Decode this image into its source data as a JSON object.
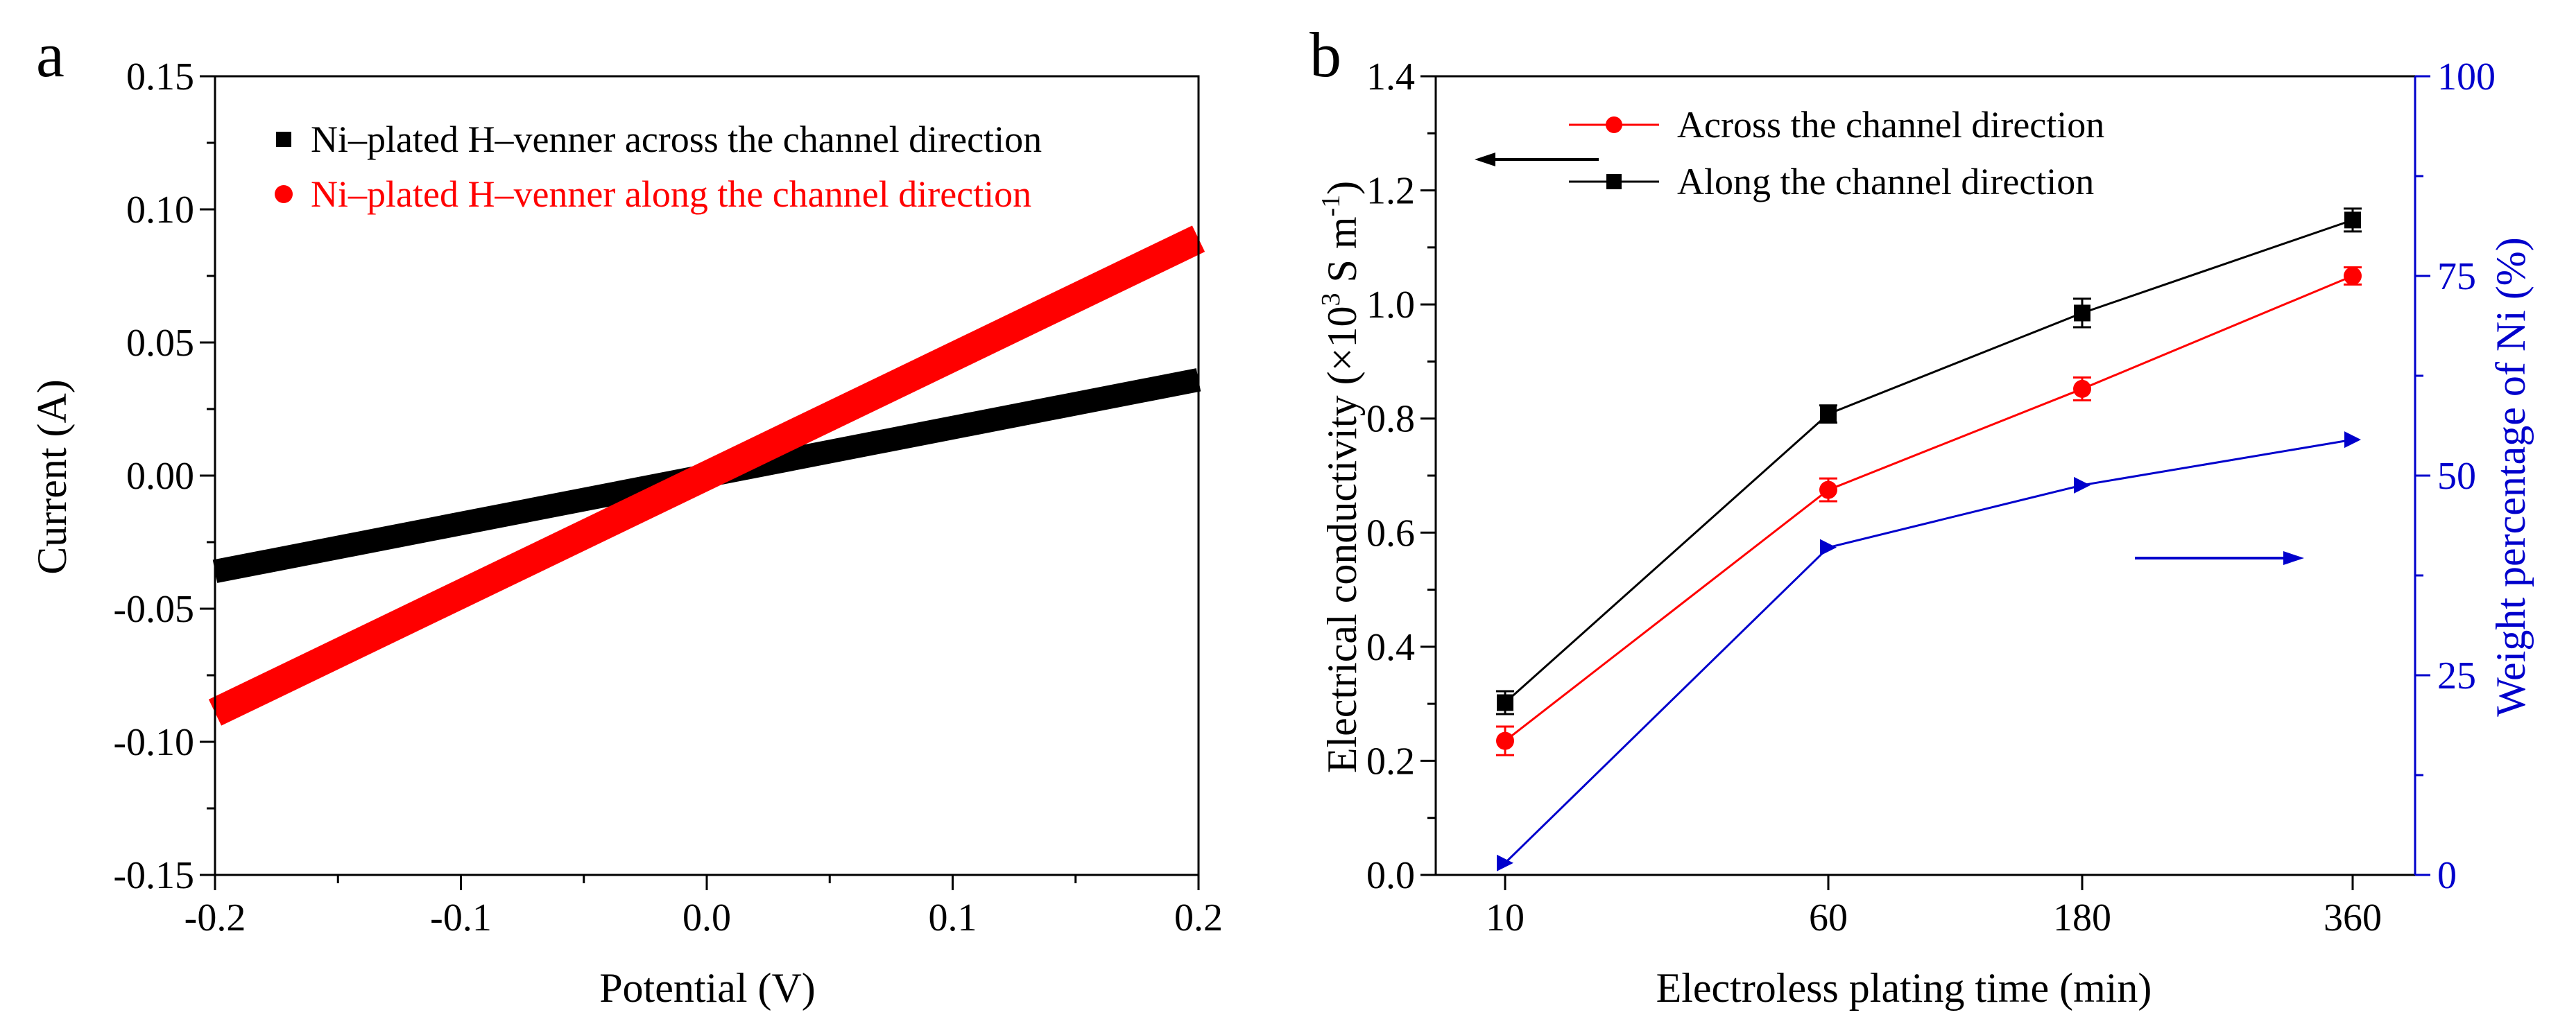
{
  "chart_data": [
    {
      "panel_label": "a",
      "type": "line",
      "xlabel": "Potential (V)",
      "ylabel": "Current (A)",
      "xlim": [
        -0.2,
        0.2
      ],
      "ylim": [
        -0.15,
        0.15
      ],
      "xticks": [
        -0.2,
        -0.1,
        0.0,
        0.1,
        0.2
      ],
      "xtick_labels": [
        "-0.2",
        "-0.1",
        "0.0",
        "0.1",
        "0.2"
      ],
      "yticks": [
        -0.15,
        -0.1,
        -0.05,
        0.0,
        0.05,
        0.1,
        0.15
      ],
      "ytick_labels": [
        "-0.15",
        "-0.10",
        "-0.05",
        "0.00",
        "0.05",
        "0.10",
        "0.15"
      ],
      "legend_position": "top-left",
      "series": [
        {
          "name": "Ni–plated H–venner across the channel direction",
          "color": "#000000",
          "marker": "square",
          "x": [
            -0.2,
            0.2
          ],
          "y": [
            -0.036,
            0.036
          ]
        },
        {
          "name": "Ni–plated H–venner along the channel direction",
          "color": "#ff0000",
          "marker": "circle",
          "x": [
            -0.2,
            0.2
          ],
          "y": [
            -0.089,
            0.089
          ]
        }
      ]
    },
    {
      "panel_label": "b",
      "type": "line",
      "xlabel": "Electroless plating time (min)",
      "ylabel_main": "Electrical conductivity (×10",
      "ylabel_sup1": "3",
      "ylabel_mid": " S m",
      "ylabel_sup2": "-1",
      "ylabel_end": ")",
      "y2label": "Weight percentage of Ni  (%)",
      "categories": [
        "10",
        "60",
        "180",
        "360"
      ],
      "ylim": [
        0.0,
        1.4
      ],
      "yticks": [
        0.0,
        0.2,
        0.4,
        0.6,
        0.8,
        1.0,
        1.2,
        1.4
      ],
      "ytick_labels": [
        "0.0",
        "0.2",
        "0.4",
        "0.6",
        "0.8",
        "1.0",
        "1.2",
        "1.4"
      ],
      "y2lim": [
        0,
        100
      ],
      "y2ticks": [
        0,
        25,
        50,
        75,
        100
      ],
      "y2tick_labels": [
        "0",
        "25",
        "50",
        "75",
        "100"
      ],
      "legend_position": "top-center",
      "accent_y2": "#0000cc",
      "series": [
        {
          "name": "Across the channel direction",
          "color": "#ff0000",
          "marker": "circle",
          "axis": "left",
          "values": [
            0.235,
            0.675,
            0.852,
            1.05
          ],
          "errors": [
            0.025,
            0.02,
            0.02,
            0.015
          ]
        },
        {
          "name": "Along the channel direction",
          "color": "#000000",
          "marker": "square",
          "axis": "left",
          "values": [
            0.302,
            0.808,
            0.985,
            1.148
          ],
          "errors": [
            0.02,
            0.015,
            0.025,
            0.02
          ]
        },
        {
          "name": "Weight percentage of Ni",
          "color": "#0000cc",
          "marker": "triangle-right",
          "axis": "right",
          "values": [
            1.5,
            41,
            48.8,
            54.5
          ],
          "errors": [
            0,
            0,
            0,
            0
          ]
        }
      ],
      "annotations": [
        {
          "type": "arrow",
          "direction": "left",
          "points_to": "left-axis",
          "color": "#000000"
        },
        {
          "type": "arrow",
          "direction": "right",
          "points_to": "right-axis",
          "color": "#0000cc"
        }
      ]
    }
  ]
}
